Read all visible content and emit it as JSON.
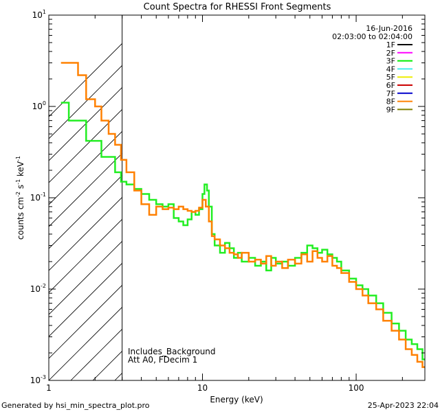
{
  "chart_data": {
    "type": "line",
    "title": "Count Spectra for RHESSI Front Segments",
    "xlabel": "Energy (keV)",
    "ylabel_main": "counts cm",
    "ylabel_exp1": "-2",
    "ylabel_mid1": " s",
    "ylabel_exp2": "-1",
    "ylabel_mid2": " keV",
    "ylabel_exp3": "-1",
    "x_scale": "log",
    "y_scale": "log",
    "xlim": [
      1,
      280
    ],
    "ylim": [
      0.001,
      10
    ],
    "x_ticks": [
      {
        "value": 1,
        "label": "1"
      },
      {
        "value": 10,
        "label": "10"
      },
      {
        "value": 100,
        "label": "100"
      }
    ],
    "y_ticks": [
      {
        "value": 0.001,
        "base": "10",
        "exp": "-3"
      },
      {
        "value": 0.01,
        "base": "10",
        "exp": "-2"
      },
      {
        "value": 0.1,
        "base": "10",
        "exp": "-1"
      },
      {
        "value": 1,
        "base": "10",
        "exp": "0"
      },
      {
        "value": 10,
        "base": "10",
        "exp": "1"
      }
    ],
    "date": "16-Jun-2016",
    "time_range": "02:03:00 to 02:04:00",
    "legend": [
      {
        "name": "1F",
        "color": "#000000"
      },
      {
        "name": "2F",
        "color": "#ff00ff"
      },
      {
        "name": "3F",
        "color": "#00ee00"
      },
      {
        "name": "4F",
        "color": "#44eeee"
      },
      {
        "name": "5F",
        "color": "#eeee00"
      },
      {
        "name": "6F",
        "color": "#cc0000"
      },
      {
        "name": "7F",
        "color": "#0000cc"
      },
      {
        "name": "8F",
        "color": "#ff8000"
      },
      {
        "name": "9F",
        "color": "#808000"
      }
    ],
    "annotations": [
      "Includes_Background",
      "Att A0, FDecim 1"
    ],
    "excluded_region_upper_keV": 3,
    "series": [
      {
        "name": "3F",
        "color": "#22ee22",
        "points": [
          [
            1.2,
            1.1
          ],
          [
            1.35,
            0.7
          ],
          [
            1.55,
            0.7
          ],
          [
            1.75,
            0.42
          ],
          [
            2.0,
            0.42
          ],
          [
            2.2,
            0.28
          ],
          [
            2.45,
            0.28
          ],
          [
            2.7,
            0.19
          ],
          [
            2.95,
            0.15
          ],
          [
            3.2,
            0.14
          ],
          [
            3.6,
            0.125
          ],
          [
            4.0,
            0.11
          ],
          [
            4.5,
            0.095
          ],
          [
            5.0,
            0.085
          ],
          [
            5.5,
            0.08
          ],
          [
            6.0,
            0.085
          ],
          [
            6.5,
            0.06
          ],
          [
            7.0,
            0.055
          ],
          [
            7.5,
            0.05
          ],
          [
            8.0,
            0.058
          ],
          [
            8.5,
            0.07
          ],
          [
            9.0,
            0.065
          ],
          [
            9.5,
            0.075
          ],
          [
            10.0,
            0.11
          ],
          [
            10.3,
            0.14
          ],
          [
            10.7,
            0.12
          ],
          [
            11.0,
            0.08
          ],
          [
            11.5,
            0.04
          ],
          [
            12,
            0.03
          ],
          [
            13,
            0.025
          ],
          [
            14,
            0.032
          ],
          [
            15,
            0.028
          ],
          [
            16,
            0.022
          ],
          [
            17,
            0.025
          ],
          [
            18,
            0.02
          ],
          [
            20,
            0.022
          ],
          [
            22,
            0.018
          ],
          [
            24,
            0.02
          ],
          [
            26,
            0.016
          ],
          [
            28,
            0.022
          ],
          [
            30,
            0.019
          ],
          [
            33,
            0.02
          ],
          [
            36,
            0.018
          ],
          [
            40,
            0.022
          ],
          [
            44,
            0.025
          ],
          [
            48,
            0.03
          ],
          [
            52,
            0.028
          ],
          [
            56,
            0.025
          ],
          [
            60,
            0.027
          ],
          [
            65,
            0.024
          ],
          [
            70,
            0.022
          ],
          [
            75,
            0.02
          ],
          [
            80,
            0.016
          ],
          [
            90,
            0.013
          ],
          [
            100,
            0.011
          ],
          [
            110,
            0.01
          ],
          [
            120,
            0.0085
          ],
          [
            135,
            0.007
          ],
          [
            150,
            0.0055
          ],
          [
            170,
            0.0042
          ],
          [
            190,
            0.0035
          ],
          [
            210,
            0.0028
          ],
          [
            230,
            0.0025
          ],
          [
            250,
            0.0022
          ],
          [
            270,
            0.0017
          ]
        ]
      },
      {
        "name": "8F",
        "color": "#ff8000",
        "points": [
          [
            1.2,
            3.0
          ],
          [
            1.35,
            3.0
          ],
          [
            1.55,
            2.2
          ],
          [
            1.75,
            1.2
          ],
          [
            2.0,
            1.0
          ],
          [
            2.2,
            0.7
          ],
          [
            2.45,
            0.5
          ],
          [
            2.7,
            0.38
          ],
          [
            2.95,
            0.26
          ],
          [
            3.2,
            0.19
          ],
          [
            3.6,
            0.12
          ],
          [
            4.0,
            0.085
          ],
          [
            4.5,
            0.065
          ],
          [
            5.0,
            0.08
          ],
          [
            5.5,
            0.075
          ],
          [
            6.0,
            0.078
          ],
          [
            6.5,
            0.075
          ],
          [
            7.0,
            0.08
          ],
          [
            7.5,
            0.075
          ],
          [
            8.0,
            0.072
          ],
          [
            8.5,
            0.07
          ],
          [
            9.0,
            0.072
          ],
          [
            9.5,
            0.078
          ],
          [
            10.0,
            0.095
          ],
          [
            10.5,
            0.08
          ],
          [
            11.0,
            0.055
          ],
          [
            11.5,
            0.038
          ],
          [
            12,
            0.035
          ],
          [
            13,
            0.03
          ],
          [
            14,
            0.028
          ],
          [
            15,
            0.025
          ],
          [
            16,
            0.024
          ],
          [
            17,
            0.022
          ],
          [
            18,
            0.025
          ],
          [
            20,
            0.02
          ],
          [
            22,
            0.021
          ],
          [
            24,
            0.019
          ],
          [
            26,
            0.023
          ],
          [
            28,
            0.018
          ],
          [
            30,
            0.02
          ],
          [
            33,
            0.017
          ],
          [
            36,
            0.021
          ],
          [
            40,
            0.019
          ],
          [
            44,
            0.024
          ],
          [
            48,
            0.02
          ],
          [
            52,
            0.026
          ],
          [
            56,
            0.022
          ],
          [
            60,
            0.02
          ],
          [
            65,
            0.023
          ],
          [
            70,
            0.018
          ],
          [
            75,
            0.017
          ],
          [
            80,
            0.015
          ],
          [
            90,
            0.012
          ],
          [
            100,
            0.01
          ],
          [
            110,
            0.0085
          ],
          [
            120,
            0.007
          ],
          [
            135,
            0.006
          ],
          [
            150,
            0.0045
          ],
          [
            170,
            0.0035
          ],
          [
            190,
            0.0028
          ],
          [
            210,
            0.0022
          ],
          [
            230,
            0.0019
          ],
          [
            250,
            0.0016
          ],
          [
            270,
            0.0014
          ]
        ]
      }
    ]
  },
  "footer": {
    "left": "Generated by hsi_min_spectra_plot.pro",
    "right": "25-Apr-2023 22:04"
  }
}
